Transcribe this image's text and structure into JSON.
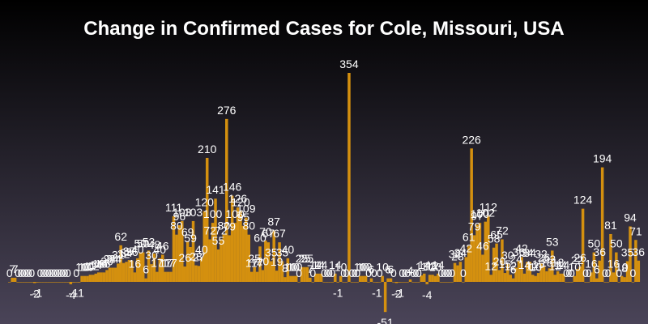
{
  "chart_data": {
    "type": "bar",
    "title": "Change in Confirmed Cases for Cole, Missouri, USA",
    "xlabel": "",
    "ylabel": "",
    "ylim": [
      -60,
      380
    ],
    "grid": false,
    "legend": "none",
    "bar_color": "#d4900f",
    "label_color": "#ffffff",
    "background_top": "#000000",
    "background_bottom": "#4a4458",
    "title_color": "#ffffff",
    "values": [
      0,
      7,
      7,
      0,
      0,
      0,
      0,
      0,
      0,
      -2,
      -1,
      0,
      0,
      0,
      0,
      0,
      0,
      0,
      0,
      0,
      0,
      0,
      -4,
      -1,
      0,
      -1,
      10,
      10,
      10,
      12,
      12,
      14,
      16,
      16,
      16,
      20,
      24,
      24,
      24,
      31,
      62,
      32,
      34,
      37,
      36,
      16,
      40,
      50,
      50,
      6,
      53,
      30,
      48,
      17,
      40,
      46,
      17,
      17,
      17,
      111,
      80,
      96,
      103,
      26,
      69,
      59,
      103,
      28,
      27,
      40,
      120,
      210,
      72,
      100,
      141,
      55,
      72,
      80,
      276,
      79,
      146,
      100,
      126,
      120,
      95,
      109,
      80,
      17,
      25,
      17,
      60,
      20,
      70,
      67,
      35,
      87,
      19,
      67,
      35,
      8,
      40,
      10,
      10,
      10,
      0,
      25,
      25,
      25,
      7,
      0,
      14,
      14,
      14,
      0,
      0,
      0,
      0,
      14,
      -1,
      10,
      0,
      0,
      354,
      0,
      0,
      0,
      10,
      10,
      10,
      0,
      6,
      0,
      -1,
      0,
      10,
      -51,
      6,
      6,
      0,
      -2,
      -1,
      0,
      0,
      0,
      4,
      0,
      0,
      0,
      11,
      14,
      -4,
      12,
      12,
      10,
      14,
      0,
      0,
      0,
      0,
      0,
      32,
      28,
      34,
      0,
      42,
      61,
      226,
      79,
      97,
      100,
      46,
      102,
      112,
      12,
      58,
      65,
      20,
      72,
      15,
      30,
      12,
      6,
      24,
      36,
      42,
      14,
      34,
      34,
      12,
      10,
      15,
      32,
      26,
      18,
      23,
      53,
      12,
      18,
      14,
      14,
      0,
      0,
      0,
      10,
      22,
      26,
      124,
      0,
      0,
      16,
      50,
      6,
      36,
      194,
      0,
      0,
      81,
      16,
      50,
      0,
      10,
      8,
      35,
      94,
      0,
      71,
      36
    ]
  }
}
